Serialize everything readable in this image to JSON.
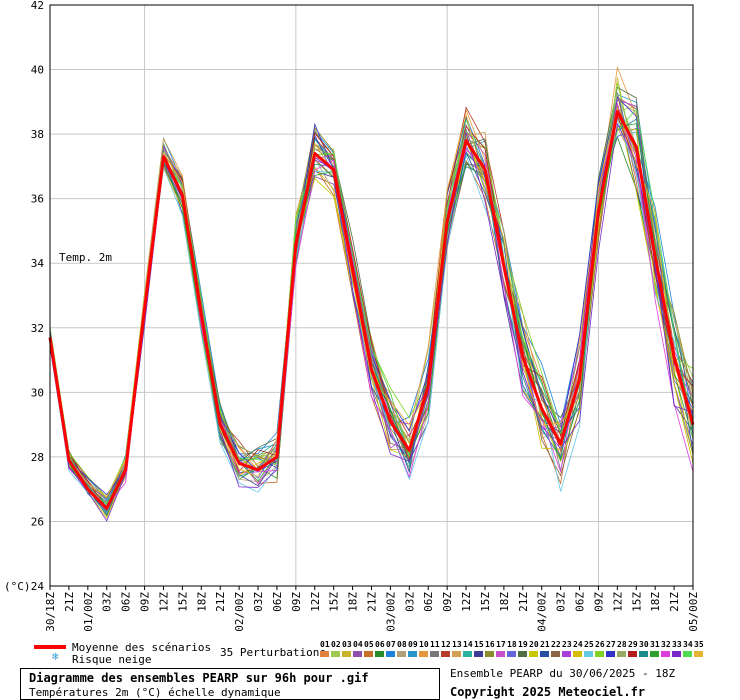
{
  "chart_data": {
    "type": "line",
    "variable_label": "Temp. 2m",
    "unit_label": "(°C)",
    "yticks": [
      24,
      26,
      28,
      30,
      32,
      34,
      36,
      38,
      40,
      42
    ],
    "ylim": [
      24,
      42
    ],
    "xticks": [
      "30/18Z",
      "21Z",
      "01/00Z",
      "03Z",
      "06Z",
      "09Z",
      "12Z",
      "15Z",
      "18Z",
      "21Z",
      "02/00Z",
      "03Z",
      "06Z",
      "09Z",
      "12Z",
      "15Z",
      "18Z",
      "21Z",
      "03/00Z",
      "03Z",
      "06Z",
      "09Z",
      "12Z",
      "15Z",
      "18Z",
      "21Z",
      "04/00Z",
      "03Z",
      "06Z",
      "09Z",
      "12Z",
      "15Z",
      "18Z",
      "21Z",
      "05/00Z"
    ],
    "grid": true,
    "mean": {
      "name": "Moyenne des scénarios",
      "color": "#ff0000",
      "values": [
        31.7,
        27.9,
        27.0,
        26.4,
        27.6,
        32.6,
        37.3,
        36.1,
        32.4,
        29.0,
        27.8,
        27.6,
        28.0,
        34.6,
        37.4,
        36.9,
        33.8,
        30.7,
        29.1,
        28.2,
        30.2,
        35.3,
        37.8,
        36.9,
        33.9,
        31.1,
        29.5,
        28.4,
        30.4,
        35.6,
        38.7,
        37.6,
        34.2,
        31.1,
        29.0
      ]
    },
    "snow_label": "Risque neige",
    "perturbations": {
      "label": "35 Perturbations",
      "count": 35,
      "colors": [
        "#e0803a",
        "#a0c850",
        "#c8b428",
        "#9050b0",
        "#c87028",
        "#288c28",
        "#1e82dc",
        "#b4a078",
        "#2896c8",
        "#e6963c",
        "#787878",
        "#b43c28",
        "#d2a050",
        "#28b4a0",
        "#3c3c96",
        "#8c8c28",
        "#c850c8",
        "#6464dc",
        "#506e46",
        "#c8c800",
        "#2850a0",
        "#8c6446",
        "#aa3cdc",
        "#d2be00",
        "#64c8e6",
        "#82d228",
        "#3232c8",
        "#96aa64",
        "#b41e1e",
        "#1e8c8c",
        "#2da02d",
        "#dc3cdc",
        "#7828c8",
        "#50dc50",
        "#e6b432"
      ]
    },
    "footer": {
      "title": "Diagramme des ensembles PEARP sur 96h pour .gif",
      "subtitle": "Températures 2m (°C) échelle dynamique",
      "run": "Ensemble PEARP du 30/06/2025 - 18Z",
      "copyright": "Copyright 2025 Meteociel.fr"
    }
  }
}
